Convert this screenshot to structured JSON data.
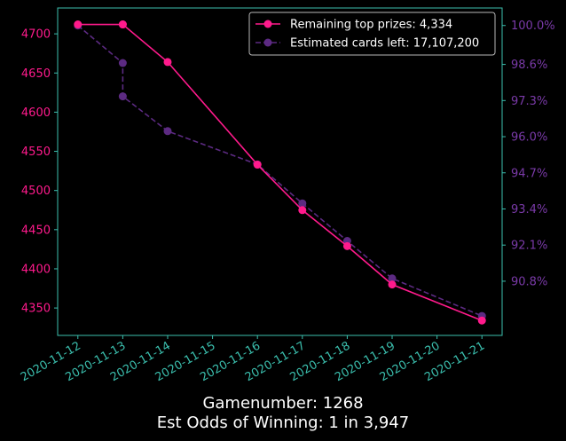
{
  "chart_data": {
    "type": "line",
    "x": [
      "2020-11-12",
      "2020-11-13",
      "2020-11-13",
      "2020-11-14",
      "2020-11-16",
      "2020-11-17",
      "2020-11-18",
      "2020-11-19",
      "2020-11-21"
    ],
    "series": [
      {
        "name": "Remaining top prizes: 4,334",
        "axis": "left",
        "color": "#ff1a8c",
        "style": "solid",
        "values": [
          4712,
          4712,
          4712,
          4664,
          4533,
          4475,
          4429,
          4380,
          4334
        ]
      },
      {
        "name": "Estimated cards left: 17,107,200",
        "axis": "right",
        "color": "#5c2a82",
        "style": "dashed",
        "values": [
          100.0,
          98.65,
          97.45,
          96.2,
          95.0,
          93.6,
          92.25,
          90.9,
          89.55
        ]
      }
    ],
    "x_ticks": [
      "2020-11-12",
      "2020-11-13",
      "2020-11-14",
      "2020-11-15",
      "2020-11-16",
      "2020-11-17",
      "2020-11-18",
      "2020-11-19",
      "2020-11-20",
      "2020-11-21"
    ],
    "y_left_ticks": [
      4350,
      4400,
      4450,
      4500,
      4550,
      4600,
      4650,
      4700
    ],
    "y_left_range": [
      4315,
      4733
    ],
    "y_right_ticks": [
      "90.8%",
      "92.1%",
      "93.4%",
      "94.7%",
      "96.0%",
      "97.3%",
      "98.6%",
      "100.0%"
    ],
    "y_right_tick_values": [
      90.8,
      92.1,
      93.4,
      94.7,
      96.0,
      97.3,
      98.6,
      100.0
    ],
    "y_right_range": [
      88.85,
      100.63
    ],
    "x_range_days": [
      -0.45,
      9.45
    ],
    "grid": false,
    "legend_position": "top-right",
    "colors": {
      "background": "#000000",
      "axes": "#3bbfae",
      "left_ticks": "#ff1a8c",
      "right_ticks": "#7a3aa8",
      "bottom_ticks": "#3bbfae"
    }
  },
  "captions": {
    "line1": "Gamenumber: 1268",
    "line2": "Est Odds of Winning: 1 in 3,947"
  }
}
